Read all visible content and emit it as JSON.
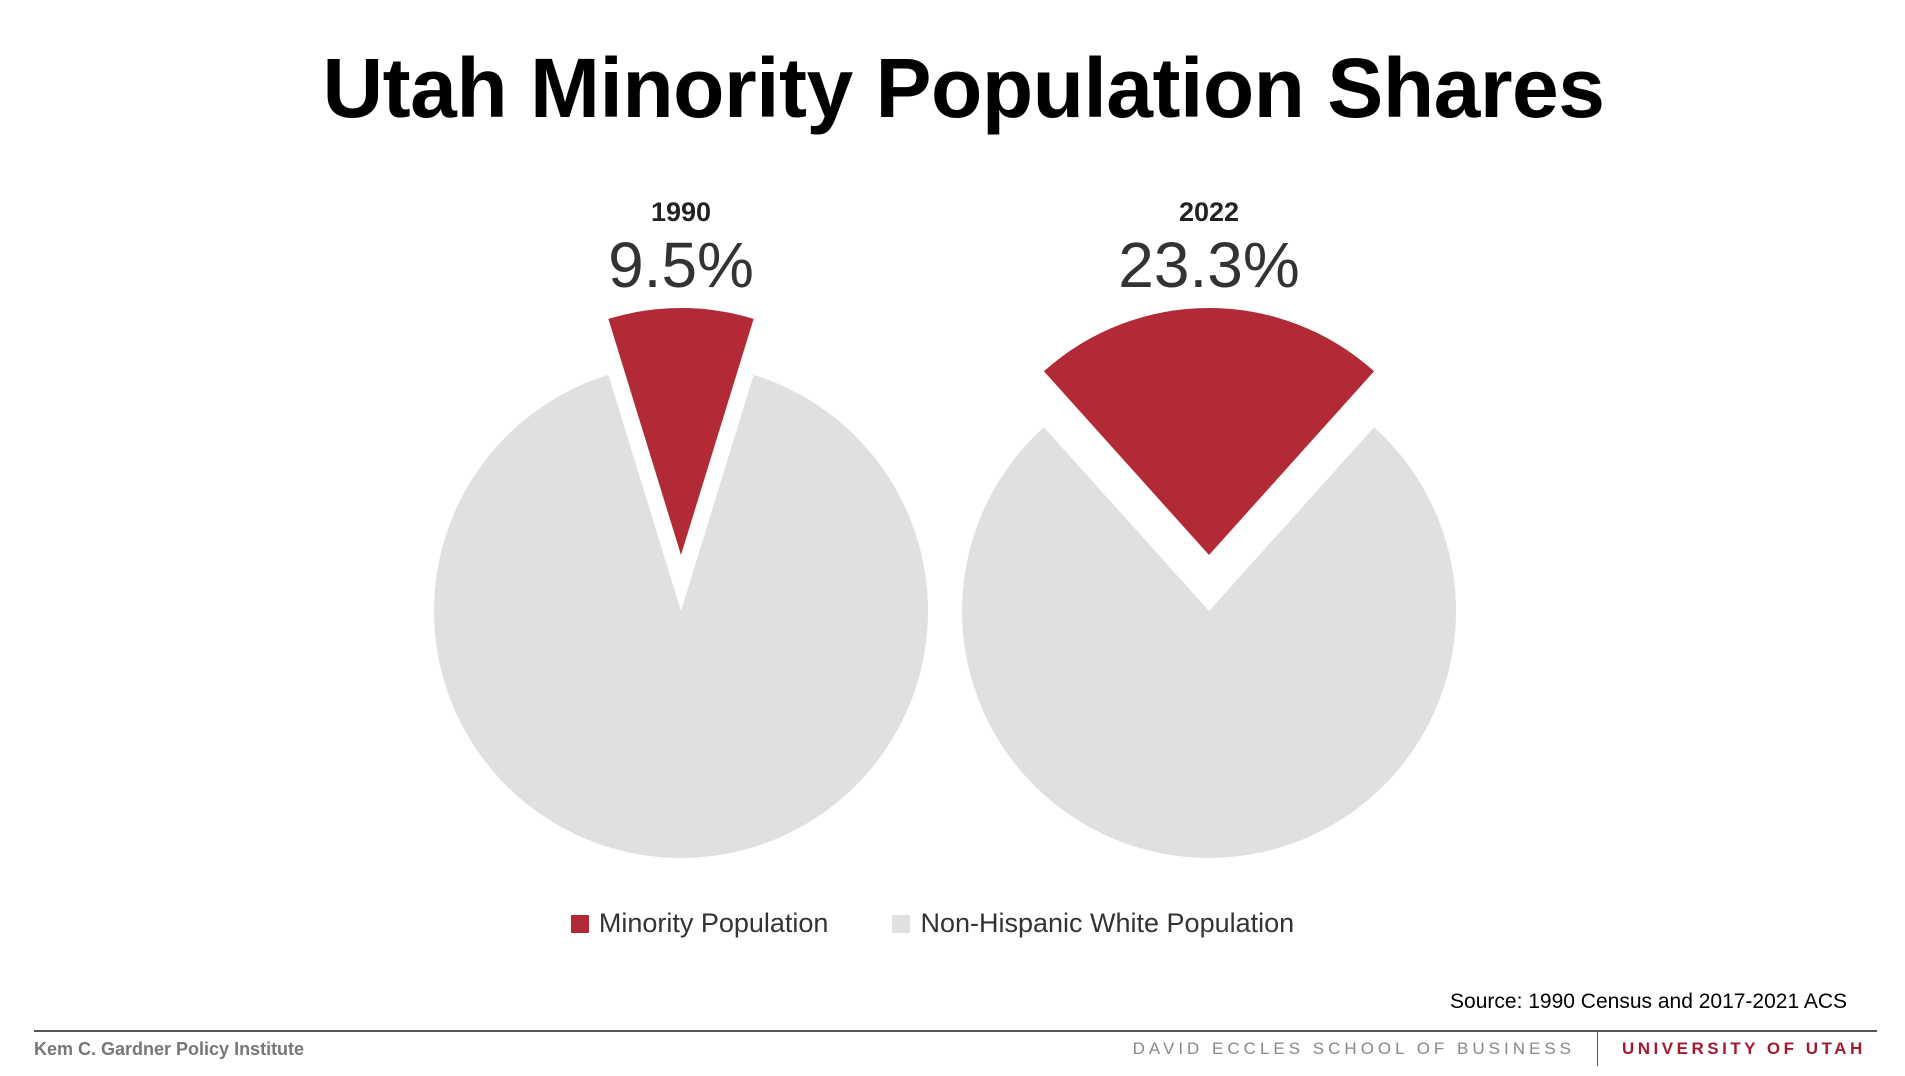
{
  "title": "Utah Minority Population Shares",
  "chart_data": [
    {
      "type": "pie",
      "title": "1990",
      "label": "9.5%",
      "slices": [
        {
          "name": "Minority Population",
          "value": 9.5,
          "exploded": true
        },
        {
          "name": "Non-Hispanic White Population",
          "value": 90.5
        }
      ]
    },
    {
      "type": "pie",
      "title": "2022",
      "label": "23.3%",
      "slices": [
        {
          "name": "Minority Population",
          "value": 23.3,
          "exploded": true
        },
        {
          "name": "Non-Hispanic White Population",
          "value": 76.7
        }
      ]
    }
  ],
  "legend": [
    {
      "label": "Minority Population",
      "color": "#b22a36"
    },
    {
      "label": "Non-Hispanic White Population",
      "color": "#e0e0e2"
    }
  ],
  "legend_placement": "bottom",
  "source": "Source: 1990 Census and 2017-2021 ACS",
  "footer": {
    "left": "Kem C. Gardner Policy Institute",
    "middle": "DAVID ECCLES SCHOOL OF BUSINESS",
    "right": "UNIVERSITY OF UTAH"
  }
}
